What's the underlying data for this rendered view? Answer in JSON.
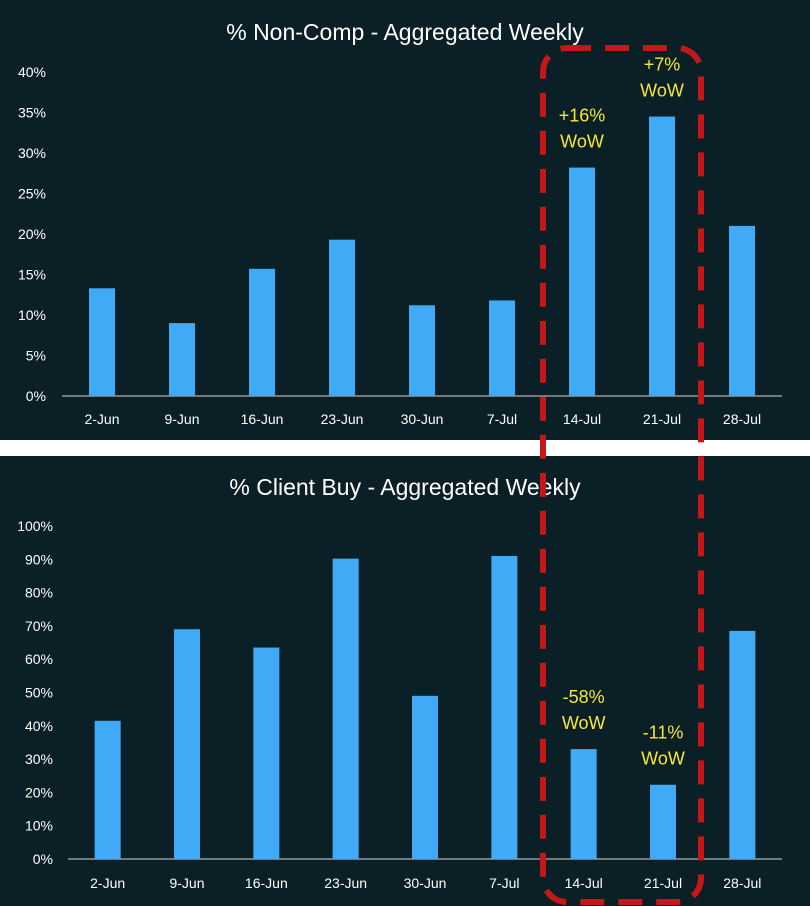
{
  "chart_data": [
    {
      "type": "bar",
      "title": "% Non-Comp - Aggregated Weekly",
      "categories": [
        "2-Jun",
        "9-Jun",
        "16-Jun",
        "23-Jun",
        "30-Jun",
        "7-Jul",
        "14-Jul",
        "21-Jul",
        "28-Jul"
      ],
      "values": [
        13.3,
        9.0,
        15.7,
        19.3,
        11.2,
        11.8,
        28.2,
        34.5,
        21.0
      ],
      "ylim": [
        0,
        40
      ],
      "yticks": [
        "0%",
        "5%",
        "10%",
        "15%",
        "20%",
        "25%",
        "30%",
        "35%",
        "40%"
      ],
      "grid": false,
      "annotations": [
        {
          "category": "14-Jul",
          "lines": [
            "+16%",
            "WoW"
          ]
        },
        {
          "category": "21-Jul",
          "lines": [
            "+7%",
            "WoW"
          ]
        }
      ]
    },
    {
      "type": "bar",
      "title": "% Client Buy - Aggregated Weekly",
      "categories": [
        "2-Jun",
        "9-Jun",
        "16-Jun",
        "23-Jun",
        "30-Jun",
        "7-Jul",
        "14-Jul",
        "21-Jul",
        "28-Jul"
      ],
      "values": [
        41.5,
        69.0,
        63.5,
        90.2,
        49.0,
        91.0,
        33.0,
        22.3,
        68.5
      ],
      "ylim": [
        0,
        100
      ],
      "yticks": [
        "0%",
        "10%",
        "20%",
        "30%",
        "40%",
        "50%",
        "60%",
        "70%",
        "80%",
        "90%",
        "100%"
      ],
      "grid": false,
      "annotations": [
        {
          "category": "14-Jul",
          "lines": [
            "-58%",
            "WoW"
          ]
        },
        {
          "category": "21-Jul",
          "lines": [
            "-11%",
            "WoW"
          ]
        }
      ]
    }
  ],
  "colors": {
    "panel_bg": "#0b1f26",
    "bar": "#41aaf7",
    "text": "#ffffff",
    "annotation": "#f5e83a",
    "highlight": "#c41818"
  },
  "highlight": {
    "style": "dashed-rounded-box",
    "categories": [
      "14-Jul",
      "21-Jul"
    ]
  }
}
